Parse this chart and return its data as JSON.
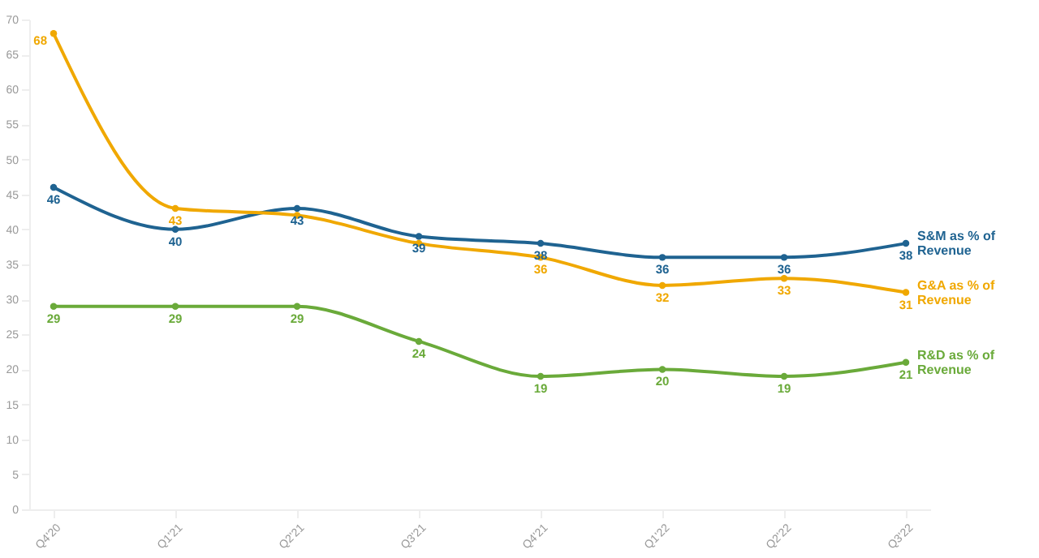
{
  "chart_data": {
    "type": "line",
    "categories": [
      "Q4'20",
      "Q1'21",
      "Q2'21",
      "Q3'21",
      "Q4'21",
      "Q1'22",
      "Q2'22",
      "Q3'22"
    ],
    "series": [
      {
        "name": "S&M as % of Revenue",
        "color": "#1f6391",
        "values": [
          46,
          40,
          43,
          39,
          38,
          36,
          36,
          38
        ],
        "value_labels": [
          "46",
          "40",
          "43",
          "39",
          "38",
          "36",
          "36",
          "38"
        ]
      },
      {
        "name": "G&A as % of Revenue",
        "color": "#f0a800",
        "values": [
          68,
          43,
          42,
          38,
          36,
          32,
          33,
          31
        ],
        "value_labels": [
          "68",
          "43",
          null,
          null,
          "36",
          "32",
          "33",
          "31"
        ]
      },
      {
        "name": "R&D as % of Revenue",
        "color": "#6aaa3a",
        "values": [
          29,
          29,
          29,
          24,
          19,
          20,
          19,
          21
        ],
        "value_labels": [
          "29",
          "29",
          "29",
          "24",
          "19",
          "20",
          "19",
          "21"
        ]
      }
    ],
    "ylim": [
      0,
      70
    ],
    "yticks": [
      0,
      5,
      10,
      15,
      20,
      25,
      30,
      35,
      40,
      45,
      50,
      55,
      60,
      65,
      70
    ],
    "grid": false,
    "marker": "circle",
    "line_style": "solid"
  }
}
